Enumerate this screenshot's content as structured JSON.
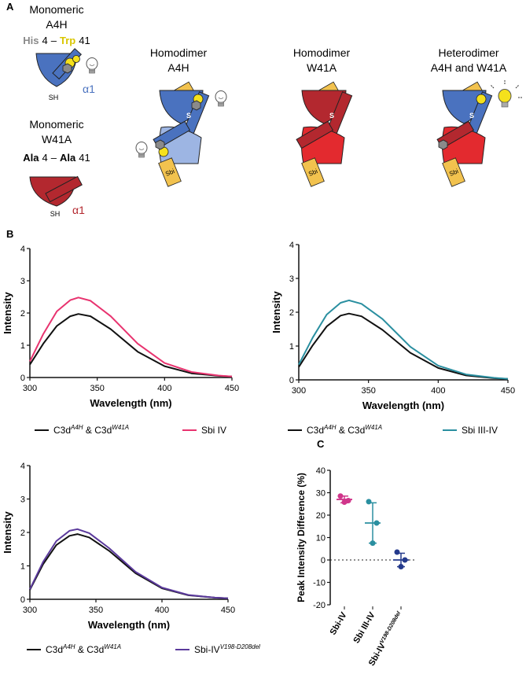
{
  "panel_a": {
    "letter": "A",
    "mono_a4h": {
      "title1": "Monomeric",
      "title2": "A4H",
      "res1": "His",
      "res1_num": "4",
      "dash": "–",
      "res2": "Trp",
      "res2_num": "41",
      "helix": "α1",
      "sh": "SH"
    },
    "mono_w41a": {
      "title1": "Monomeric",
      "title2": "W41A",
      "res1": "Ala",
      "res1_num": "4",
      "dash": "–",
      "res2": "Ala",
      "res2_num": "41",
      "helix": "α1",
      "sh": "SH"
    },
    "homo_a4h": {
      "title1": "Homodimer",
      "title2": "A4H",
      "sbi": "Sbi",
      "s": "S"
    },
    "homo_w41a": {
      "title1": "Homodimer",
      "title2": "W41A",
      "sbi": "Sbi",
      "s": "S"
    },
    "hetero": {
      "title1": "Heterodimer",
      "title2": "A4H and W41A",
      "sbi": "Sbi",
      "s": "S"
    }
  },
  "colors": {
    "blue_dark": "#4a72bf",
    "blue_light": "#9db5e3",
    "red_dark": "#b3282f",
    "red_bright": "#e32a2f",
    "sbi": "#f2c24e",
    "yellow": "#f5e11c",
    "grey_hex": "#8a8a8a",
    "pink": "#e8336f",
    "teal": "#2a8fa0",
    "purple": "#5b3a9c",
    "navy": "#243a8c",
    "magenta": "#d0358a",
    "black": "#111111"
  },
  "panel_b_letter": "B",
  "panel_c_letter": "C",
  "chart_data": [
    {
      "type": "line",
      "xlabel": "Wavelength (nm)",
      "ylabel": "Intensity",
      "xlim": [
        300,
        450
      ],
      "ylim": [
        0,
        4
      ],
      "xticks": [
        "300",
        "350",
        "400",
        "450"
      ],
      "yticks": [
        "0",
        "1",
        "2",
        "3",
        "4"
      ],
      "series": [
        {
          "name": "C3dA4H & C3dW41A",
          "legend_main": "C3d",
          "legend_sup1": "A4H",
          "legend_mid": " & C3d",
          "legend_sup2": "W41A",
          "color": "#111111",
          "x": [
            300,
            310,
            320,
            330,
            336,
            345,
            360,
            380,
            400,
            420,
            440,
            450
          ],
          "y": [
            0.4,
            1.05,
            1.6,
            1.9,
            1.97,
            1.9,
            1.5,
            0.8,
            0.35,
            0.13,
            0.05,
            0.03
          ]
        },
        {
          "name": "Sbi IV",
          "legend_main": "Sbi IV",
          "color": "#e8336f",
          "x": [
            300,
            310,
            320,
            330,
            336,
            345,
            360,
            380,
            400,
            420,
            440,
            450
          ],
          "y": [
            0.5,
            1.35,
            2.05,
            2.4,
            2.48,
            2.38,
            1.9,
            1.05,
            0.45,
            0.17,
            0.06,
            0.03
          ]
        }
      ]
    },
    {
      "type": "line",
      "xlabel": "Wavelength (nm)",
      "ylabel": "Intensity",
      "xlim": [
        300,
        450
      ],
      "ylim": [
        0,
        4
      ],
      "xticks": [
        "300",
        "350",
        "400",
        "450"
      ],
      "yticks": [
        "0",
        "1",
        "2",
        "3",
        "4"
      ],
      "series": [
        {
          "name": "C3dA4H & C3dW41A",
          "legend_main": "C3d",
          "legend_sup1": "A4H",
          "legend_mid": " & C3d",
          "legend_sup2": "W41A",
          "color": "#111111",
          "x": [
            300,
            310,
            320,
            330,
            336,
            345,
            360,
            380,
            400,
            420,
            440,
            450
          ],
          "y": [
            0.38,
            1.02,
            1.58,
            1.9,
            1.96,
            1.88,
            1.48,
            0.8,
            0.35,
            0.13,
            0.05,
            0.03
          ]
        },
        {
          "name": "Sbi III-IV",
          "legend_main": "Sbi III-IV",
          "color": "#2a8fa0",
          "x": [
            300,
            310,
            320,
            330,
            336,
            345,
            360,
            380,
            400,
            420,
            440,
            450
          ],
          "y": [
            0.45,
            1.25,
            1.93,
            2.28,
            2.35,
            2.25,
            1.8,
            0.98,
            0.42,
            0.16,
            0.06,
            0.03
          ]
        }
      ]
    },
    {
      "type": "line",
      "xlabel": "Wavelength (nm)",
      "ylabel": "Intensity",
      "xlim": [
        300,
        450
      ],
      "ylim": [
        0,
        4
      ],
      "xticks": [
        "300",
        "350",
        "400",
        "450"
      ],
      "yticks": [
        "0",
        "1",
        "2",
        "3",
        "4"
      ],
      "series": [
        {
          "name": "C3dA4H & C3dW41A",
          "legend_main": "C3d",
          "legend_sup1": "A4H",
          "legend_mid": " & C3d",
          "legend_sup2": "W41A",
          "color": "#111111",
          "x": [
            300,
            310,
            320,
            330,
            336,
            345,
            360,
            380,
            400,
            420,
            440,
            450
          ],
          "y": [
            0.28,
            1.05,
            1.62,
            1.9,
            1.95,
            1.85,
            1.45,
            0.78,
            0.33,
            0.12,
            0.05,
            0.03
          ]
        },
        {
          "name": "Sbi-IVV198-D208del",
          "legend_main": "Sbi-IV",
          "legend_sup1": "V198-D208del",
          "color": "#5b3a9c",
          "x": [
            300,
            310,
            320,
            330,
            336,
            345,
            360,
            380,
            400,
            420,
            440,
            450
          ],
          "y": [
            0.3,
            1.12,
            1.74,
            2.05,
            2.1,
            1.98,
            1.53,
            0.82,
            0.35,
            0.13,
            0.05,
            0.03
          ]
        }
      ]
    },
    {
      "type": "scatter",
      "ylabel": "Peak Intensity Difference (%)",
      "ylim": [
        -20,
        40
      ],
      "yticks": [
        "-20",
        "-10",
        "0",
        "10",
        "20",
        "30",
        "40"
      ],
      "categories": [
        "Sbi-IV",
        "Sbi III-IV",
        "Sbi-IVV198-D208del"
      ],
      "category_labels": [
        {
          "main": "Sbi-IV"
        },
        {
          "main": "Sbi III-IV"
        },
        {
          "main": "Sbi-IV",
          "sup": "V198-D208del"
        }
      ],
      "points": [
        [
          28.5,
          26.5,
          25.8
        ],
        [
          26,
          16.5,
          7.5
        ],
        [
          3.5,
          0,
          -3
        ]
      ],
      "mean": [
        27,
        16.5,
        0
      ],
      "sd": [
        1.5,
        9,
        3
      ],
      "colors": [
        "#d0358a",
        "#2a8fa0",
        "#243a8c"
      ],
      "reference_line": 0
    }
  ]
}
